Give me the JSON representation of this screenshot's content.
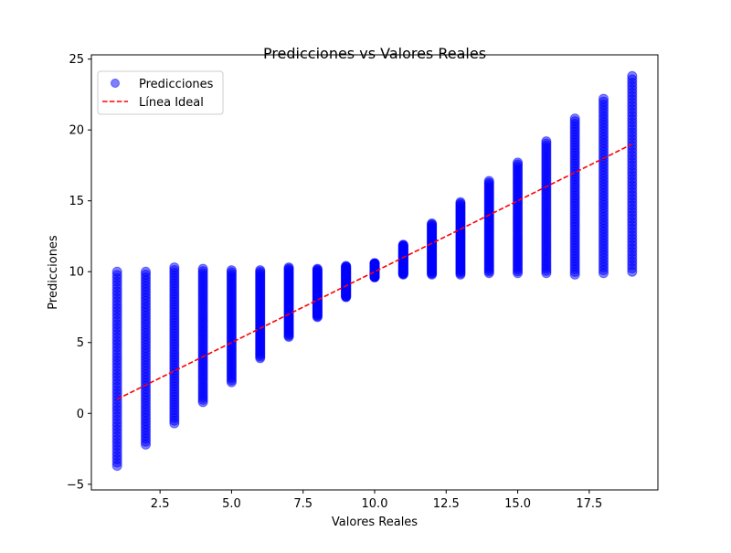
{
  "chart_data": {
    "type": "scatter",
    "title": "Predicciones vs Valores Reales",
    "xlabel": "Valores Reales",
    "ylabel": "Predicciones",
    "xlim": [
      0.1,
      19.9
    ],
    "ylim": [
      -5.4,
      25.3
    ],
    "x_ticks": [
      2.5,
      5.0,
      7.5,
      10.0,
      12.5,
      15.0,
      17.5
    ],
    "x_tick_labels": [
      "2.5",
      "5.0",
      "7.5",
      "10.0",
      "12.5",
      "15.0",
      "17.5"
    ],
    "y_ticks": [
      -5,
      0,
      5,
      10,
      15,
      20,
      25
    ],
    "y_tick_labels": [
      "−5",
      "0",
      "5",
      "10",
      "15",
      "20",
      "25"
    ],
    "grid": false,
    "legend_position": "top-left",
    "series": [
      {
        "name": "Predicciones",
        "kind": "scatter",
        "color": "#0000ff",
        "alpha": 0.5,
        "points_per_column": 60,
        "columns": [
          {
            "x": 1,
            "y_min": -3.7,
            "y_max": 10.0
          },
          {
            "x": 2,
            "y_min": -2.2,
            "y_max": 10.0
          },
          {
            "x": 3,
            "y_min": -0.7,
            "y_max": 10.3
          },
          {
            "x": 4,
            "y_min": 0.8,
            "y_max": 10.2
          },
          {
            "x": 5,
            "y_min": 2.2,
            "y_max": 10.1
          },
          {
            "x": 6,
            "y_min": 3.9,
            "y_max": 10.1
          },
          {
            "x": 7,
            "y_min": 5.4,
            "y_max": 10.3
          },
          {
            "x": 8,
            "y_min": 6.8,
            "y_max": 10.2
          },
          {
            "x": 9,
            "y_min": 8.2,
            "y_max": 10.4
          },
          {
            "x": 10,
            "y_min": 9.6,
            "y_max": 10.6
          },
          {
            "x": 11,
            "y_min": 9.8,
            "y_max": 11.9
          },
          {
            "x": 12,
            "y_min": 9.8,
            "y_max": 13.4
          },
          {
            "x": 13,
            "y_min": 9.8,
            "y_max": 14.9
          },
          {
            "x": 14,
            "y_min": 9.9,
            "y_max": 16.4
          },
          {
            "x": 15,
            "y_min": 9.9,
            "y_max": 17.7
          },
          {
            "x": 16,
            "y_min": 9.9,
            "y_max": 19.2
          },
          {
            "x": 17,
            "y_min": 9.8,
            "y_max": 20.8
          },
          {
            "x": 18,
            "y_min": 9.9,
            "y_max": 22.2
          },
          {
            "x": 19,
            "y_min": 10.0,
            "y_max": 23.8
          }
        ]
      },
      {
        "name": "Línea Ideal",
        "kind": "line",
        "style": "dashed",
        "color": "#ff0000",
        "x": [
          1,
          19
        ],
        "y": [
          1,
          19
        ]
      }
    ]
  }
}
